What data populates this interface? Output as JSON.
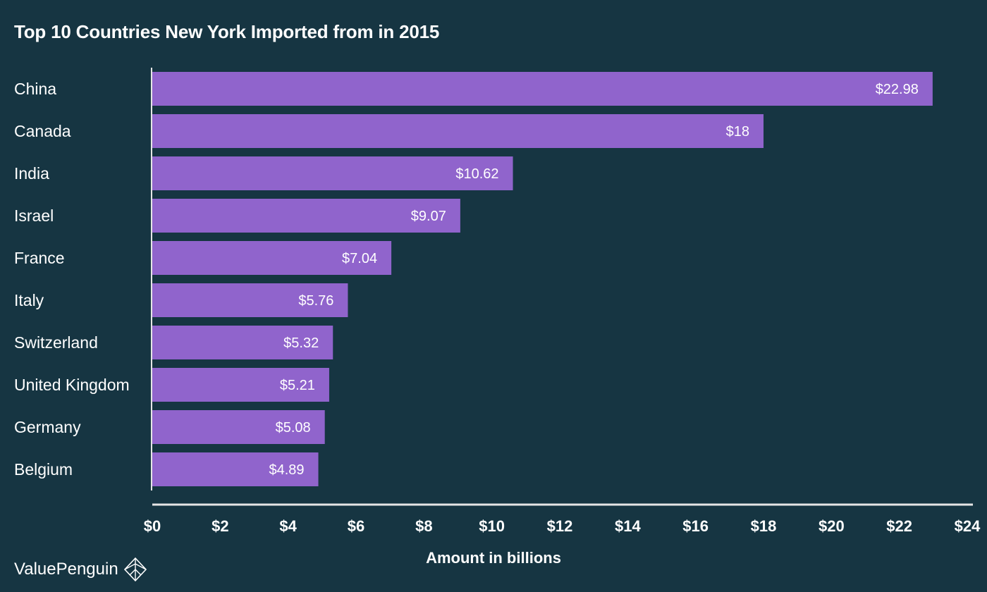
{
  "brand": {
    "name": "ValuePenguin",
    "logo_icon": "penguin-diamond-icon"
  },
  "colors": {
    "background": "#163542",
    "bar": "#9064cc",
    "text": "#ffffff",
    "axis": "#e6e6e6"
  },
  "chart_data": {
    "type": "bar",
    "orientation": "horizontal",
    "title": "Top 10 Countries New York Imported from in 2015",
    "xlabel": "Amount in billions",
    "ylabel": "",
    "categories": [
      "China",
      "Canada",
      "India",
      "Israel",
      "France",
      "Italy",
      "Switzerland",
      "United Kingdom",
      "Germany",
      "Belgium"
    ],
    "values": [
      22.98,
      18,
      10.62,
      9.07,
      7.04,
      5.76,
      5.32,
      5.21,
      5.08,
      4.89
    ],
    "value_labels": [
      "$22.98",
      "$18",
      "$10.62",
      "$9.07",
      "$7.04",
      "$5.76",
      "$5.32",
      "$5.21",
      "$5.08",
      "$4.89"
    ],
    "xlim": [
      0,
      24
    ],
    "x_ticks": [
      0,
      2,
      4,
      6,
      8,
      10,
      12,
      14,
      16,
      18,
      20,
      22,
      24
    ],
    "x_tick_labels": [
      "$0",
      "$2",
      "$4",
      "$6",
      "$8",
      "$10",
      "$12",
      "$14",
      "$16",
      "$18",
      "$20",
      "$22",
      "$24"
    ],
    "grid": false,
    "legend": "none"
  }
}
